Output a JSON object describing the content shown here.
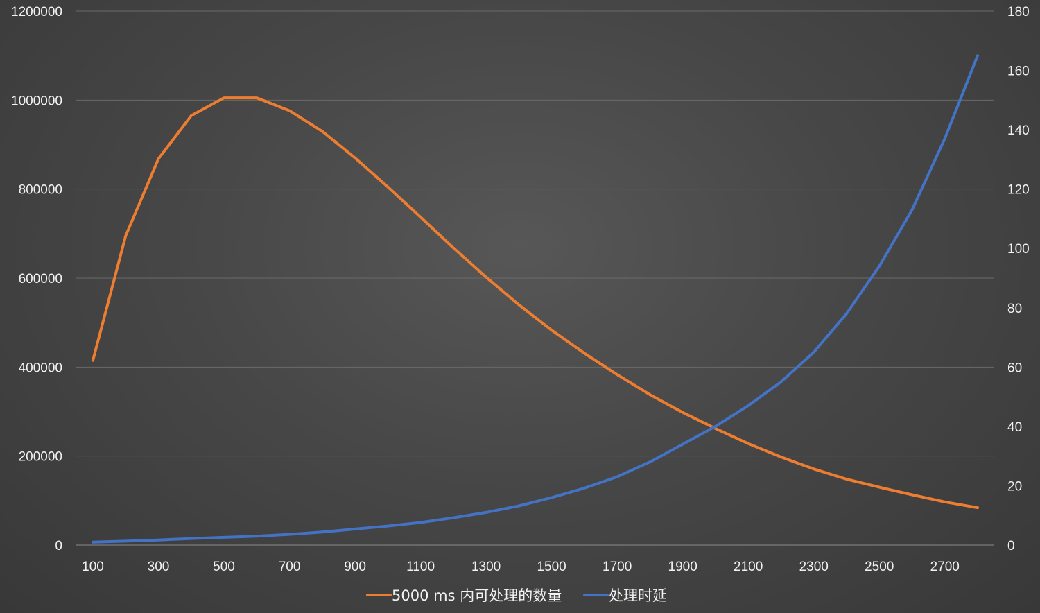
{
  "chart_data": {
    "type": "line",
    "title": "",
    "xlabel": "",
    "ylabel": "",
    "y2label": "",
    "x": [
      100,
      200,
      300,
      400,
      500,
      600,
      700,
      800,
      900,
      1000,
      1100,
      1200,
      1300,
      1400,
      1500,
      1600,
      1700,
      1800,
      1900,
      2000,
      2100,
      2200,
      2300,
      2400,
      2500,
      2600,
      2700,
      2800
    ],
    "x_tick_labels": [
      "100",
      "300",
      "500",
      "700",
      "900",
      "1100",
      "1300",
      "1500",
      "1700",
      "1900",
      "2100",
      "2300",
      "2500",
      "2700"
    ],
    "x_tick_values": [
      100,
      300,
      500,
      700,
      900,
      1100,
      1300,
      1500,
      1700,
      1900,
      2100,
      2300,
      2500,
      2700
    ],
    "ylim": [
      0,
      1200000
    ],
    "y_ticks": [
      0,
      200000,
      400000,
      600000,
      800000,
      1000000,
      1200000
    ],
    "y2lim": [
      0,
      180
    ],
    "y2_ticks": [
      0,
      20,
      40,
      60,
      80,
      100,
      120,
      140,
      160,
      180
    ],
    "grid": true,
    "legend_position": "bottom",
    "series": [
      {
        "name": "5000 ms 内可处理的数量",
        "axis": "left",
        "color": "#ed7d31",
        "values": [
          415000,
          695000,
          868000,
          965000,
          1005000,
          1005000,
          976000,
          930000,
          870000,
          805000,
          737000,
          668000,
          602000,
          540000,
          483000,
          431000,
          383000,
          338000,
          298000,
          262000,
          228000,
          198000,
          171000,
          148000,
          130000,
          113000,
          97000,
          84000
        ]
      },
      {
        "name": "处理时延",
        "axis": "right",
        "color": "#4472c4",
        "values": [
          1,
          1.3,
          1.7,
          2.2,
          2.6,
          3,
          3.6,
          4.4,
          5.4,
          6.4,
          7.6,
          9.2,
          11,
          13.2,
          16,
          19.2,
          23,
          28,
          34,
          40,
          47,
          55,
          65,
          78,
          94,
          113,
          137,
          165
        ]
      }
    ]
  }
}
